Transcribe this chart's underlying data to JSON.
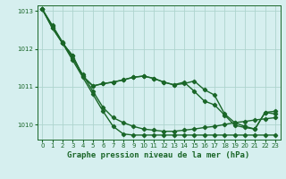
{
  "xlabel": "Graphe pression niveau de la mer (hPa)",
  "ylim": [
    1009.6,
    1013.15
  ],
  "xlim": [
    -0.5,
    23.5
  ],
  "yticks": [
    1010,
    1011,
    1012,
    1013
  ],
  "xticks": [
    0,
    1,
    2,
    3,
    4,
    5,
    6,
    7,
    8,
    9,
    10,
    11,
    12,
    13,
    14,
    15,
    16,
    17,
    18,
    19,
    20,
    21,
    22,
    23
  ],
  "bg_color": "#d6efef",
  "grid_color": "#aed4ce",
  "line_color": "#1a6628",
  "line1_straight": [
    1013.05,
    1012.6,
    1012.15,
    1011.7,
    1011.25,
    1010.8,
    1010.35,
    1009.95,
    1009.75,
    1009.72,
    1009.72,
    1009.72,
    1009.72,
    1009.72,
    1009.72,
    1009.72,
    1009.72,
    1009.72,
    1009.72,
    1009.72,
    1009.72,
    1009.72,
    1009.72,
    1009.72
  ],
  "line2_zigzag": [
    1013.05,
    1012.55,
    1012.15,
    1011.82,
    1011.28,
    1011.02,
    1011.08,
    1011.12,
    1011.18,
    1011.25,
    1011.28,
    1011.22,
    1011.12,
    1011.05,
    1011.08,
    1011.15,
    1010.92,
    1010.78,
    1010.28,
    1010.05,
    1009.95,
    1009.88,
    1010.32,
    1010.35
  ],
  "line3_smooth": [
    1013.05,
    1012.55,
    1012.15,
    1011.82,
    1011.28,
    1011.02,
    1011.08,
    1011.12,
    1011.18,
    1011.25,
    1011.28,
    1011.22,
    1011.12,
    1011.05,
    1011.12,
    1010.88,
    1010.62,
    1010.52,
    1010.25,
    1009.98,
    1009.92,
    1009.88,
    1010.32,
    1010.28
  ],
  "line4_diagonal": [
    1013.05,
    1012.62,
    1012.18,
    1011.75,
    1011.32,
    1010.88,
    1010.45,
    1010.18,
    1010.05,
    1009.95,
    1009.88,
    1009.85,
    1009.82,
    1009.82,
    1009.85,
    1009.88,
    1009.92,
    1009.95,
    1010.0,
    1010.05,
    1010.08,
    1010.12,
    1010.15,
    1010.18
  ],
  "marker": "D",
  "markersize": 2.2,
  "linewidth": 1.0
}
